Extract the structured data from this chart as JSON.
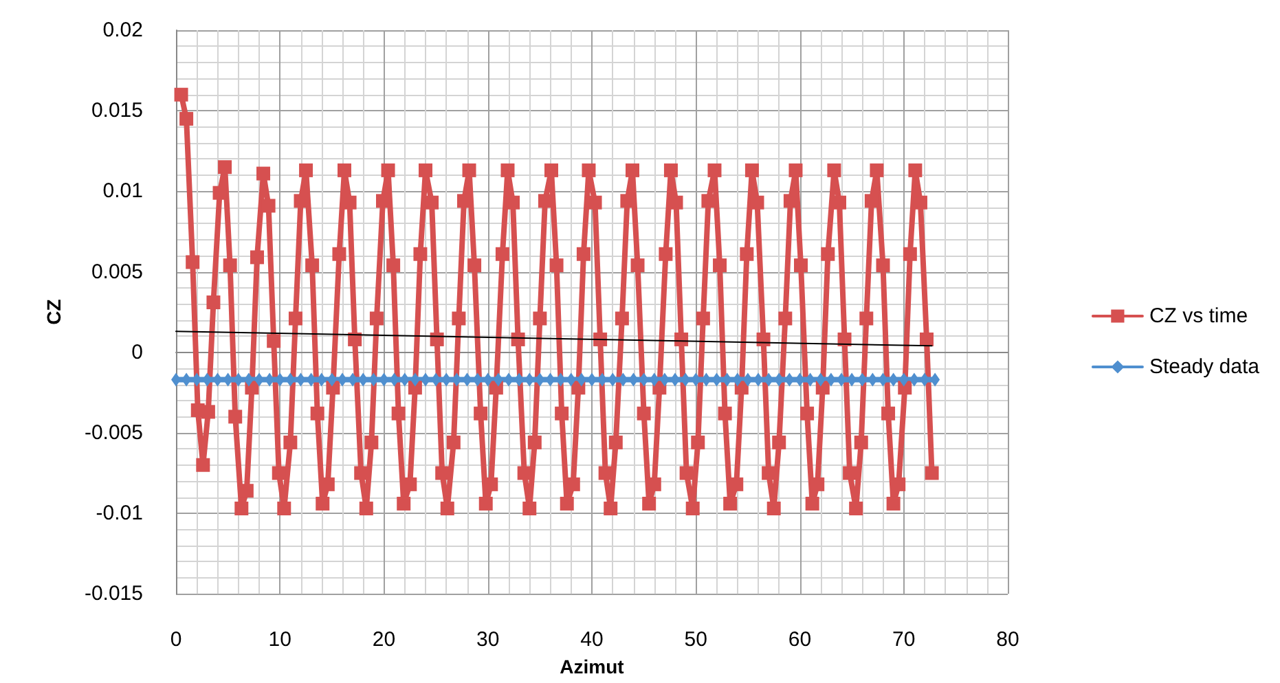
{
  "chart_data": {
    "type": "line",
    "xlabel": "Azimut",
    "ylabel": "CZ",
    "xlim": [
      0,
      80
    ],
    "xticks": [
      0,
      10,
      20,
      30,
      40,
      50,
      60,
      70,
      80
    ],
    "ylim": [
      -0.015,
      0.02
    ],
    "yticks": [
      -0.015,
      -0.01,
      -0.005,
      0,
      0.005,
      0.01,
      0.015,
      0.02
    ],
    "grid": true,
    "legend": "right",
    "series": [
      {
        "name": "CZ vs time",
        "color": "#d65050",
        "marker": "square",
        "x": [
          0.5,
          1.0,
          1.6,
          2.1,
          2.6,
          3.1,
          3.6,
          4.2,
          4.7,
          5.2,
          5.7,
          6.3,
          6.8,
          7.3,
          7.8,
          8.4,
          8.9,
          9.4,
          9.9,
          10.4,
          11.0,
          11.5,
          12.0,
          12.5,
          13.1,
          13.6,
          14.1,
          14.6,
          15.1,
          15.7,
          16.2,
          16.7,
          17.2,
          17.8,
          18.3,
          18.8,
          19.3,
          19.9,
          20.4,
          20.9,
          21.4,
          21.9,
          22.5,
          23.0,
          23.5,
          24.0,
          24.6,
          25.1,
          25.6,
          26.1,
          26.7,
          27.2,
          27.7,
          28.2,
          28.7,
          29.3,
          29.8,
          30.3,
          30.8,
          31.4,
          31.9,
          32.4,
          32.9,
          33.5,
          34.0,
          34.5,
          35.0,
          35.5,
          36.1,
          36.6,
          37.1,
          37.6,
          38.2,
          38.7,
          39.2,
          39.7,
          40.3,
          40.8,
          41.3,
          41.8,
          42.3,
          42.9,
          43.4,
          43.9,
          44.4,
          45.0,
          45.5,
          46.0,
          46.5,
          47.1,
          47.6,
          48.1,
          48.6,
          49.1,
          49.7,
          50.2,
          50.7,
          51.2,
          51.8,
          52.3,
          52.8,
          53.3,
          53.9,
          54.4,
          54.9,
          55.4,
          55.9,
          56.5,
          57.0,
          57.5,
          58.0,
          58.6,
          59.1,
          59.6,
          60.1,
          60.7,
          61.2,
          61.7,
          62.2,
          62.7,
          63.3,
          63.8,
          64.3,
          64.8,
          65.4,
          65.9,
          66.4,
          66.9,
          67.4,
          68.0,
          68.5,
          69.0,
          69.5,
          70.1,
          70.6,
          71.1,
          71.6,
          72.2,
          72.7
        ],
        "values": [
          0.016,
          0.0145,
          0.0056,
          -0.0036,
          -0.007,
          -0.0037,
          0.0031,
          0.0099,
          0.0115,
          0.0054,
          -0.004,
          -0.0097,
          -0.0086,
          -0.0022,
          0.0059,
          0.0111,
          0.0091,
          0.0007,
          -0.0075,
          -0.0097,
          -0.0056,
          0.0021,
          0.0094,
          0.0113,
          0.0054,
          -0.0038,
          -0.0094,
          -0.0082,
          -0.0022,
          0.0061,
          0.0113,
          0.0093,
          0.0008,
          -0.0075,
          -0.0097,
          -0.0056,
          0.0021,
          0.0094,
          0.0113,
          0.0054,
          -0.0038,
          -0.0094,
          -0.0082,
          -0.0022,
          0.0061,
          0.0113,
          0.0093,
          0.0008,
          -0.0075,
          -0.0097,
          -0.0056,
          0.0021,
          0.0094,
          0.0113,
          0.0054,
          -0.0038,
          -0.0094,
          -0.0082,
          -0.0022,
          0.0061,
          0.0113,
          0.0093,
          0.0008,
          -0.0075,
          -0.0097,
          -0.0056,
          0.0021,
          0.0094,
          0.0113,
          0.0054,
          -0.0038,
          -0.0094,
          -0.0082,
          -0.0022,
          0.0061,
          0.0113,
          0.0093,
          0.0008,
          -0.0075,
          -0.0097,
          -0.0056,
          0.0021,
          0.0094,
          0.0113,
          0.0054,
          -0.0038,
          -0.0094,
          -0.0082,
          -0.0022,
          0.0061,
          0.0113,
          0.0093,
          0.0008,
          -0.0075,
          -0.0097,
          -0.0056,
          0.0021,
          0.0094,
          0.0113,
          0.0054,
          -0.0038,
          -0.0094,
          -0.0082,
          -0.0022,
          0.0061,
          0.0113,
          0.0093,
          0.0008,
          -0.0075,
          -0.0097,
          -0.0056,
          0.0021,
          0.0094,
          0.0113,
          0.0054,
          -0.0038,
          -0.0094,
          -0.0082,
          -0.0022,
          0.0061,
          0.0113,
          0.0093,
          0.0008,
          -0.0075,
          -0.0097,
          -0.0056,
          0.0021,
          0.0094,
          0.0113,
          0.0054,
          -0.0038,
          -0.0094,
          -0.0082,
          -0.0022,
          0.0061,
          0.0113,
          0.0093,
          0.0008,
          -0.0075
        ]
      },
      {
        "name": "Steady data",
        "color": "#4f8fcf",
        "marker": "diamond",
        "x": [
          0,
          1,
          2,
          3,
          4,
          5,
          6,
          7,
          8,
          9,
          10,
          11,
          12,
          13,
          14,
          15,
          16,
          17,
          18,
          19,
          20,
          21,
          22,
          23,
          24,
          25,
          26,
          27,
          28,
          29,
          30,
          31,
          32,
          33,
          34,
          35,
          36,
          37,
          38,
          39,
          40,
          41,
          42,
          43,
          44,
          45,
          46,
          47,
          48,
          49,
          50,
          51,
          52,
          53,
          54,
          55,
          56,
          57,
          58,
          59,
          60,
          61,
          62,
          63,
          64,
          65,
          66,
          67,
          68,
          69,
          70,
          71,
          72,
          73
        ],
        "values": [
          -0.0017,
          -0.0017,
          -0.0017,
          -0.0017,
          -0.0017,
          -0.0017,
          -0.0017,
          -0.0017,
          -0.0017,
          -0.0017,
          -0.0017,
          -0.0017,
          -0.0017,
          -0.0017,
          -0.0017,
          -0.0017,
          -0.0017,
          -0.0017,
          -0.0017,
          -0.0017,
          -0.0017,
          -0.0017,
          -0.0017,
          -0.0017,
          -0.0017,
          -0.0017,
          -0.0017,
          -0.0017,
          -0.0017,
          -0.0017,
          -0.0017,
          -0.0017,
          -0.0017,
          -0.0017,
          -0.0017,
          -0.0017,
          -0.0017,
          -0.0017,
          -0.0017,
          -0.0017,
          -0.0017,
          -0.0017,
          -0.0017,
          -0.0017,
          -0.0017,
          -0.0017,
          -0.0017,
          -0.0017,
          -0.0017,
          -0.0017,
          -0.0017,
          -0.0017,
          -0.0017,
          -0.0017,
          -0.0017,
          -0.0017,
          -0.0017,
          -0.0017,
          -0.0017,
          -0.0017,
          -0.0017,
          -0.0017,
          -0.0017,
          -0.0017,
          -0.0017,
          -0.0017,
          -0.0017,
          -0.0017,
          -0.0017,
          -0.0017,
          -0.0017,
          -0.0017,
          -0.0017,
          -0.0017
        ]
      },
      {
        "color": "#000000",
        "marker": "none",
        "x": [
          0,
          72.7
        ],
        "values": [
          0.0013,
          0.0004
        ]
      }
    ]
  }
}
